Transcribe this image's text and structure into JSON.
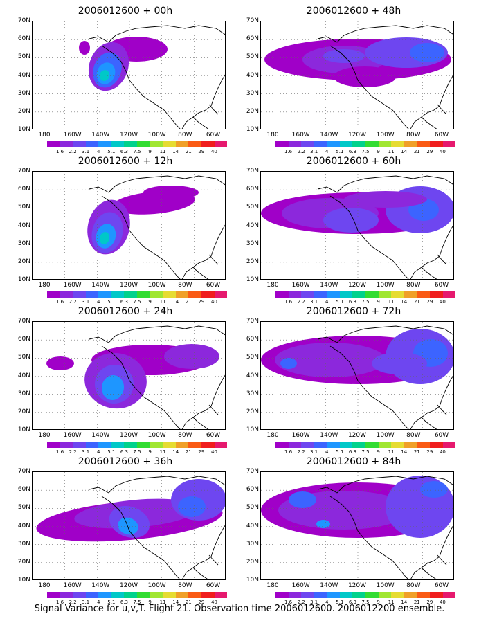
{
  "figure": {
    "caption": "Signal Variance for u,v,T. Flight 21. Observation time 2006012600. 2006012200 ensemble."
  },
  "axes": {
    "lat_labels": [
      "70N",
      "60N",
      "50N",
      "40N",
      "30N",
      "20N",
      "10N"
    ],
    "lon_labels": [
      "180",
      "160W",
      "140W",
      "120W",
      "100W",
      "80W",
      "60W"
    ]
  },
  "colorbar": {
    "levels": [
      "1.6",
      "2.2",
      "3.1",
      "4",
      "5.1",
      "6.3",
      "7.5",
      "9",
      "11",
      "14",
      "21",
      "29",
      "40"
    ],
    "colors": [
      "#a000c8",
      "#8c28dc",
      "#6e46f0",
      "#3c64ff",
      "#1e96ff",
      "#00c8c8",
      "#00d28c",
      "#32dc32",
      "#a0e632",
      "#e6dc32",
      "#f0a028",
      "#fa5a14",
      "#f01e1e",
      "#e6196e"
    ]
  },
  "panels": [
    {
      "id": "p00",
      "title": "2006012600 + 00h"
    },
    {
      "id": "p48",
      "title": "2006012600 + 48h"
    },
    {
      "id": "p12",
      "title": "2006012600 + 12h"
    },
    {
      "id": "p60",
      "title": "2006012600 + 60h"
    },
    {
      "id": "p24",
      "title": "2006012600 + 24h"
    },
    {
      "id": "p72",
      "title": "2006012600 + 72h"
    },
    {
      "id": "p36",
      "title": "2006012600 + 36h"
    },
    {
      "id": "p84",
      "title": "2006012600 + 84h"
    }
  ]
}
